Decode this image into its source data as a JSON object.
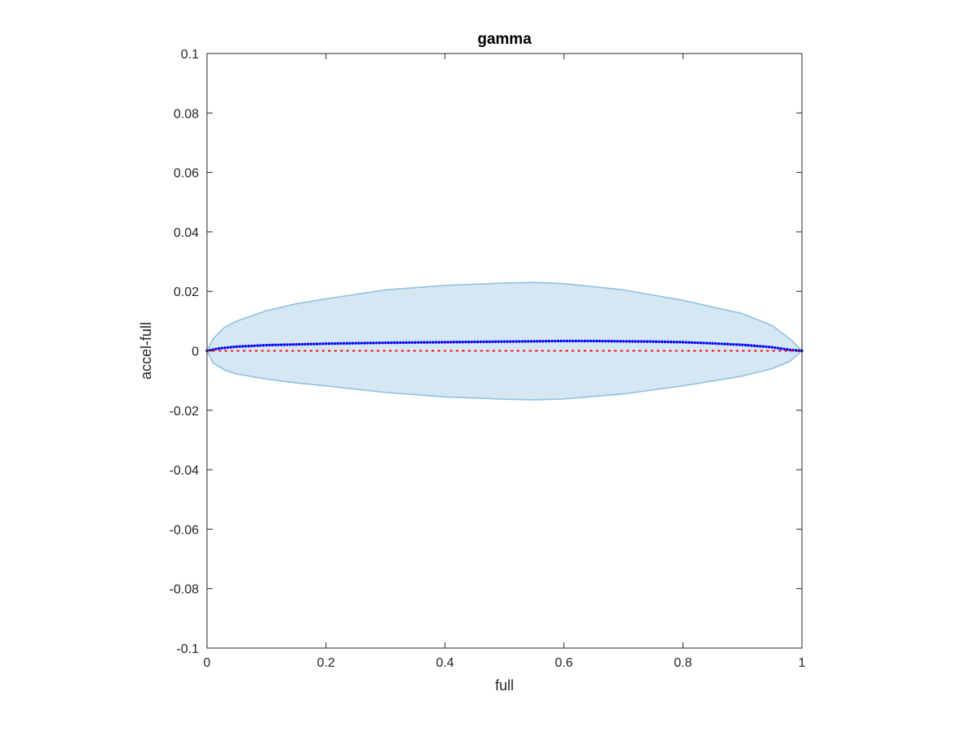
{
  "chart_data": {
    "type": "line",
    "title": "gamma",
    "xlabel": "full",
    "ylabel": "accel-full",
    "xlim": [
      0,
      1
    ],
    "ylim": [
      -0.1,
      0.1
    ],
    "xticks": [
      0,
      0.2,
      0.4,
      0.6,
      0.8,
      1
    ],
    "xtick_labels": [
      "0",
      "0.2",
      "0.4",
      "0.6",
      "0.8",
      "1"
    ],
    "yticks": [
      -0.1,
      -0.08,
      -0.06,
      -0.04,
      -0.02,
      0,
      0.02,
      0.04,
      0.06,
      0.08,
      0.1
    ],
    "ytick_labels": [
      "-0.1",
      "-0.08",
      "-0.06",
      "-0.04",
      "-0.02",
      "0",
      "0.02",
      "0.04",
      "0.06",
      "0.08",
      "0.1"
    ],
    "grid": false,
    "band": {
      "color": "#d6e7f4",
      "edge_color": "#8fc1e0",
      "x": [
        0,
        0.01,
        0.03,
        0.05,
        0.1,
        0.15,
        0.2,
        0.3,
        0.4,
        0.5,
        0.55,
        0.6,
        0.7,
        0.8,
        0.9,
        0.95,
        0.98,
        1
      ],
      "upper": [
        0,
        0.004,
        0.008,
        0.01,
        0.0135,
        0.0158,
        0.0175,
        0.0205,
        0.022,
        0.0228,
        0.023,
        0.0226,
        0.0205,
        0.017,
        0.0125,
        0.0085,
        0.004,
        0
      ],
      "lower": [
        0,
        -0.004,
        -0.0065,
        -0.0078,
        -0.0095,
        -0.0108,
        -0.0118,
        -0.014,
        -0.0155,
        -0.0163,
        -0.0165,
        -0.0162,
        -0.0145,
        -0.0118,
        -0.0085,
        -0.006,
        -0.0035,
        0
      ]
    },
    "series": [
      {
        "color": "#0000ff",
        "style": "dotted-markers",
        "x": [
          0,
          0.02,
          0.05,
          0.1,
          0.2,
          0.3,
          0.4,
          0.5,
          0.55,
          0.6,
          0.65,
          0.7,
          0.75,
          0.8,
          0.85,
          0.9,
          0.95,
          0.98,
          1
        ],
        "y": [
          0,
          0.0008,
          0.0014,
          0.0019,
          0.0024,
          0.0027,
          0.0029,
          0.0031,
          0.0032,
          0.0033,
          0.0033,
          0.0032,
          0.0031,
          0.0029,
          0.0025,
          0.002,
          0.0012,
          0.0003,
          0
        ]
      },
      {
        "color": "#ff0000",
        "style": "dotted",
        "x": [
          0,
          1
        ],
        "y": [
          0,
          0
        ]
      }
    ]
  }
}
